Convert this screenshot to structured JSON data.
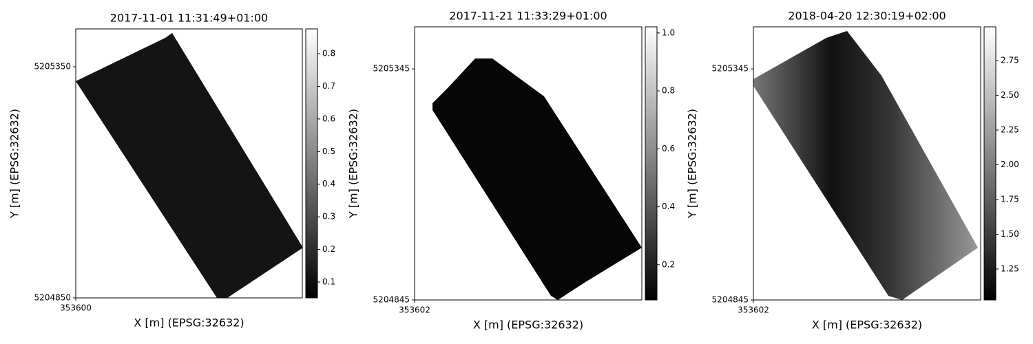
{
  "chart_data": [
    {
      "type": "heatmap",
      "title": "2017-11-01 11:31:49+01:00",
      "xlabel": "X [m] (EPSG:32632)",
      "ylabel": "Y [m] (EPSG:32632)",
      "xlim": [
        353600,
        354090
      ],
      "xticks": [
        353600
      ],
      "ylim": [
        5204850,
        5205432
      ],
      "yticks": [
        5204850,
        5205350
      ],
      "cmap": "gray",
      "clim": [
        0.0515,
        0.876
      ],
      "cticks": [
        0.1,
        0.2,
        0.3,
        0.4,
        0.5,
        0.6,
        0.7,
        0.8
      ]
    },
    {
      "type": "heatmap",
      "title": "2017-11-21 11:33:29+01:00",
      "xlabel": "X [m] (EPSG:32632)",
      "ylabel": "Y [m] (EPSG:32632)",
      "xlim": [
        353602,
        354093
      ],
      "xticks": [
        353602
      ],
      "ylim": [
        5204845,
        5205436
      ],
      "yticks": [
        5204845,
        5205345
      ],
      "cmap": "gray",
      "clim": [
        0.0786,
        1.021
      ],
      "cticks": [
        0.2,
        0.4,
        0.6,
        0.8,
        {
          "value": 1.0,
          "label": "1.0"
        }
      ]
    },
    {
      "type": "heatmap",
      "title": "2018-04-20 12:30:19+02:00",
      "xlabel": "X [m] (EPSG:32632)",
      "ylabel": "Y [m] (EPSG:32632)",
      "xlim": [
        353602,
        354093
      ],
      "xticks": [
        353602
      ],
      "ylim": [
        5204845,
        5205436
      ],
      "yticks": [
        5204845,
        5205345
      ],
      "cmap": "gray",
      "clim": [
        1.027,
        2.993
      ],
      "cticks": [
        1.25,
        {
          "value": 1.5,
          "label": "1.50"
        },
        1.75,
        {
          "value": 2.0,
          "label": "2.00"
        },
        2.25,
        {
          "value": 2.5,
          "label": "2.50"
        },
        2.75
      ]
    }
  ]
}
